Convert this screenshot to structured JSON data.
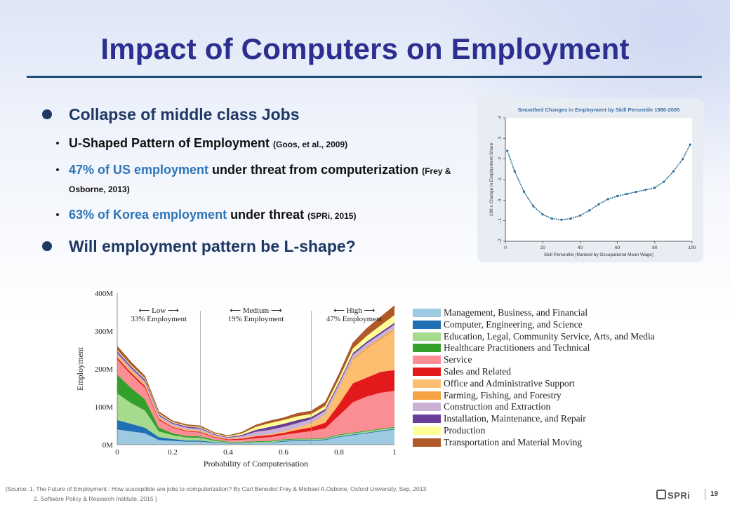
{
  "slide": {
    "title": "Impact of Computers on Employment",
    "page_number": "19",
    "logo_text": "SPRi"
  },
  "bullets": {
    "b1": "Collapse of middle class Jobs",
    "s1_text": "U-Shaped Pattern of Employment",
    "s1_cite": "(Goos, et al., 2009)",
    "s2_blue": "47% of US employment",
    "s2_text": " under threat from computerization",
    "s2_cite": "(Frey & Osborne, 2013)",
    "s3_blue": "63% of Korea employment",
    "s3_text": " under threat",
    "s3_cite": "(SPRi, 2015)",
    "b2": "Will employment pattern be L-shape?"
  },
  "source": {
    "line1": "[Source: 1. The Future of Employment : How susceptible are jobs to computerization? By Carl Benedict Frey & Michael A.Osbone, Oxford University, Sep, 2013",
    "line2": "2. Software Policy & Research Institute, 2015 ]"
  },
  "chart_data": [
    {
      "type": "line",
      "title": "Smoothed Changes in Employment by Skill Percentile 1980-2005",
      "xlabel": "Skill Percentile (Ranked by Occupational Mean Wage)",
      "ylabel": "100 x Change in Employment Share",
      "xlim": [
        0,
        100
      ],
      "ylim": [
        -0.2,
        0.4
      ],
      "xticks": [
        "0",
        "20",
        "40",
        "60",
        "80",
        "100"
      ],
      "yticks": [
        "-.2",
        "-.1",
        "0",
        ".1",
        ".2",
        ".3",
        ".4"
      ],
      "grid": false,
      "x": [
        1,
        5,
        10,
        15,
        20,
        25,
        30,
        35,
        40,
        45,
        50,
        55,
        60,
        65,
        70,
        75,
        80,
        85,
        90,
        95,
        99
      ],
      "y": [
        0.24,
        0.14,
        0.04,
        -0.03,
        -0.07,
        -0.09,
        -0.095,
        -0.09,
        -0.075,
        -0.05,
        -0.02,
        0.005,
        0.02,
        0.03,
        0.04,
        0.05,
        0.06,
        0.09,
        0.14,
        0.2,
        0.27
      ],
      "color": "#2a6f97"
    },
    {
      "type": "area",
      "xlabel": "Probability of Computerisation",
      "ylabel": "Employment",
      "xlim": [
        0,
        1
      ],
      "ylim": [
        0,
        400
      ],
      "xticks": [
        "0",
        "0.2",
        "0.4",
        "0.6",
        "0.8",
        "1"
      ],
      "yticks": [
        "0M",
        "100M",
        "200M",
        "300M",
        "400M"
      ],
      "zones": [
        {
          "name": "Low",
          "share": "33% Employment"
        },
        {
          "name": "Medium",
          "share": "19% Employment"
        },
        {
          "name": "High",
          "share": "47% Employment"
        }
      ],
      "boundaries": [
        0.3,
        0.7
      ],
      "x": [
        0,
        0.05,
        0.1,
        0.15,
        0.2,
        0.25,
        0.3,
        0.35,
        0.4,
        0.45,
        0.5,
        0.55,
        0.6,
        0.65,
        0.7,
        0.75,
        0.8,
        0.85,
        0.9,
        0.95,
        1.0
      ],
      "series": [
        {
          "name": "Management, Business, and Financial",
          "color": "#9ecae1",
          "values": [
            40,
            35,
            30,
            12,
            10,
            8,
            8,
            5,
            3,
            3,
            4,
            5,
            8,
            10,
            10,
            12,
            20,
            25,
            30,
            35,
            40
          ]
        },
        {
          "name": "Computer, Engineering, and Science",
          "color": "#1f6fb4",
          "values": [
            25,
            20,
            15,
            8,
            5,
            3,
            3,
            2,
            1,
            1,
            1,
            1,
            2,
            2,
            2,
            2,
            2,
            2,
            2,
            2,
            2
          ]
        },
        {
          "name": "Education, Legal, Community Service, Arts, and Media",
          "color": "#a6db8d",
          "values": [
            70,
            55,
            45,
            15,
            10,
            8,
            7,
            3,
            2,
            2,
            2,
            2,
            2,
            2,
            2,
            2,
            3,
            3,
            3,
            3,
            3
          ]
        },
        {
          "name": "Healthcare Practitioners and Technical",
          "color": "#33a02c",
          "values": [
            50,
            40,
            30,
            10,
            5,
            4,
            4,
            3,
            2,
            2,
            2,
            2,
            2,
            2,
            2,
            2,
            2,
            2,
            2,
            2,
            2
          ]
        },
        {
          "name": "Service",
          "color": "#fb8d94",
          "values": [
            40,
            35,
            30,
            20,
            15,
            12,
            10,
            6,
            4,
            5,
            8,
            10,
            12,
            15,
            20,
            25,
            50,
            80,
            90,
            95,
            95
          ]
        },
        {
          "name": "Sales and Related",
          "color": "#e31a1c",
          "values": [
            5,
            5,
            5,
            3,
            2,
            2,
            2,
            2,
            2,
            3,
            5,
            5,
            5,
            8,
            10,
            15,
            30,
            50,
            50,
            55,
            55
          ]
        },
        {
          "name": "Office and Administrative Support",
          "color": "#fdbf6f",
          "values": [
            5,
            5,
            5,
            3,
            2,
            2,
            2,
            1,
            1,
            1,
            1,
            1,
            3,
            5,
            10,
            20,
            40,
            60,
            75,
            85,
            105
          ]
        },
        {
          "name": "Farming, Fishing, and Forestry",
          "color": "#f7a344",
          "values": [
            2,
            2,
            2,
            1,
            1,
            1,
            1,
            1,
            1,
            1,
            1,
            1,
            1,
            1,
            1,
            1,
            3,
            5,
            5,
            5,
            5
          ]
        },
        {
          "name": "Construction and Extraction",
          "color": "#cab2d6",
          "values": [
            5,
            5,
            5,
            5,
            5,
            5,
            5,
            3,
            2,
            5,
            10,
            12,
            12,
            12,
            10,
            10,
            10,
            10,
            10,
            10,
            10
          ]
        },
        {
          "name": "Installation, Maintenance, and Repair",
          "color": "#6a3d9a",
          "values": [
            5,
            5,
            5,
            3,
            3,
            3,
            3,
            2,
            2,
            3,
            5,
            8,
            8,
            8,
            6,
            5,
            5,
            5,
            5,
            5,
            5
          ]
        },
        {
          "name": "Production",
          "color": "#ffff99",
          "values": [
            3,
            3,
            3,
            3,
            2,
            2,
            2,
            2,
            2,
            4,
            8,
            10,
            10,
            10,
            8,
            8,
            10,
            12,
            15,
            18,
            20
          ]
        },
        {
          "name": "Transportation and Material Moving",
          "color": "#b15928",
          "values": [
            10,
            8,
            6,
            4,
            3,
            3,
            3,
            2,
            2,
            3,
            5,
            6,
            6,
            8,
            8,
            10,
            12,
            15,
            20,
            22,
            25
          ]
        }
      ]
    }
  ]
}
